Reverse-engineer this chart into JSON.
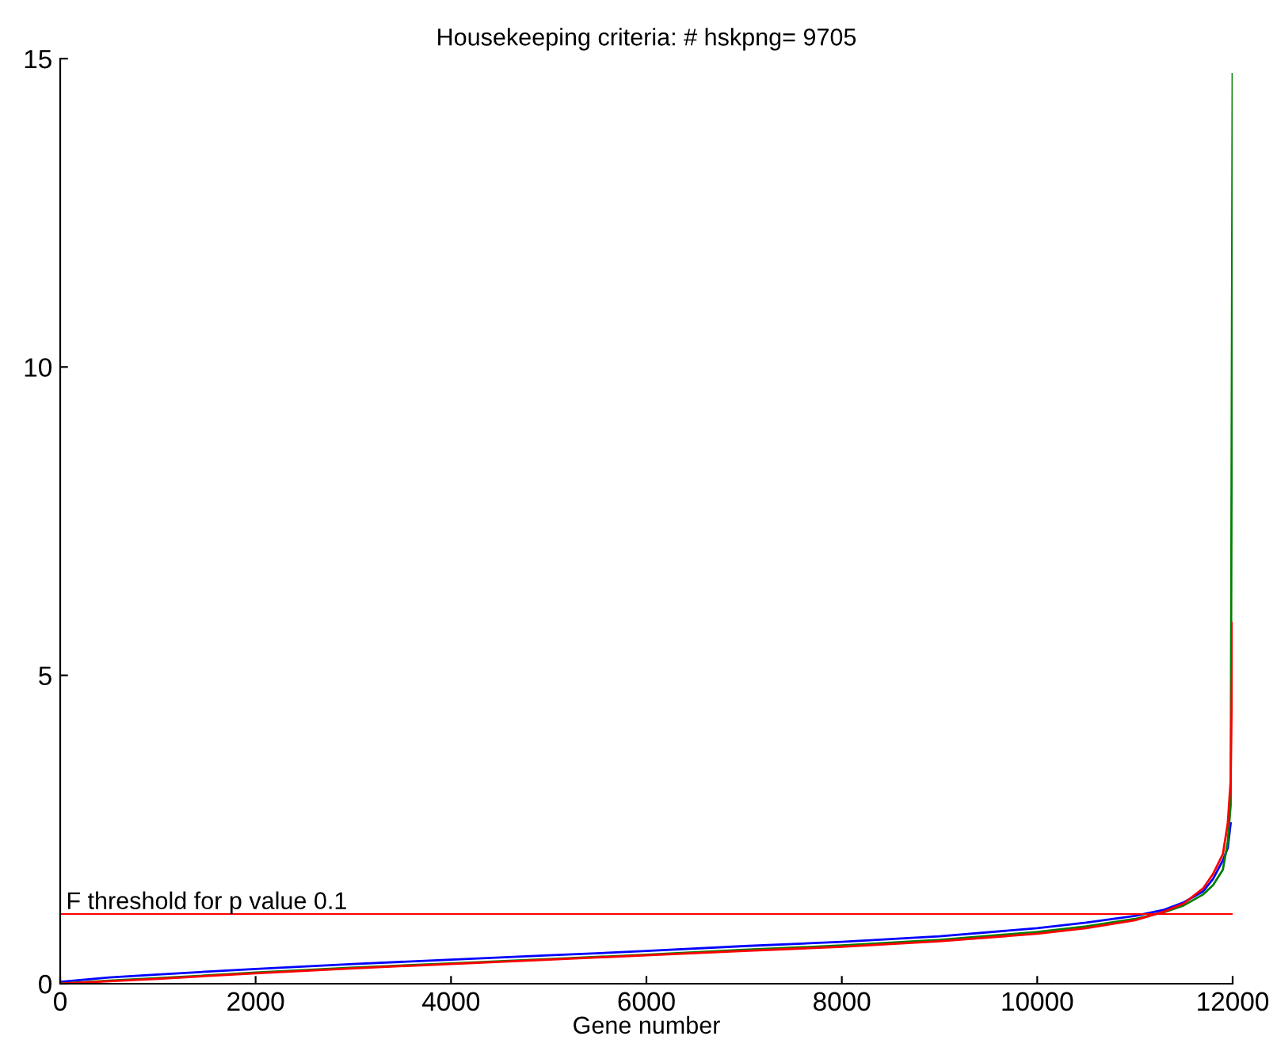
{
  "chart_data": {
    "type": "line",
    "title": "Housekeeping criteria: # hskpng= 9705",
    "xlabel": "Gene number",
    "x": [
      0,
      500,
      1000,
      2000,
      3000,
      4000,
      5000,
      6000,
      7000,
      8000,
      9000,
      10000,
      10500,
      11000,
      11300,
      11500,
      11700,
      11800,
      11900,
      11950,
      11980,
      12000
    ],
    "series": [
      {
        "color": "#0000ff",
        "values": [
          0.03,
          0.1,
          0.15,
          0.24,
          0.32,
          0.39,
          0.46,
          0.53,
          0.61,
          0.68,
          0.77,
          0.9,
          0.99,
          1.1,
          1.2,
          1.32,
          1.5,
          1.7,
          2.0,
          2.2,
          2.6,
          null
        ]
      },
      {
        "color": "#008000",
        "values": [
          0,
          0.05,
          0.09,
          0.18,
          0.26,
          0.33,
          0.4,
          0.47,
          0.55,
          0.62,
          0.71,
          0.84,
          0.93,
          1.05,
          1.16,
          1.27,
          1.45,
          1.6,
          1.85,
          2.3,
          2.9,
          14.75
        ]
      },
      {
        "color": "#ff0000",
        "values": [
          0,
          0.04,
          0.08,
          0.17,
          0.25,
          0.32,
          0.39,
          0.46,
          0.53,
          0.6,
          0.69,
          0.81,
          0.9,
          1.03,
          1.17,
          1.3,
          1.55,
          1.78,
          2.1,
          2.6,
          3.3,
          5.85
        ]
      }
    ],
    "xlim": [
      0,
      12000
    ],
    "xticks": [
      0,
      2000,
      4000,
      6000,
      8000,
      10000,
      12000
    ],
    "ylim": [
      0,
      15
    ],
    "yticks": [
      0,
      5,
      10,
      15
    ],
    "ref_lines": [
      {
        "axis": "y",
        "value": 1.13,
        "label": "F threshold for p value 0.1",
        "color": "#ff0000"
      }
    ],
    "grid": false,
    "legend": false,
    "line_style": "solid",
    "marker": "none"
  }
}
